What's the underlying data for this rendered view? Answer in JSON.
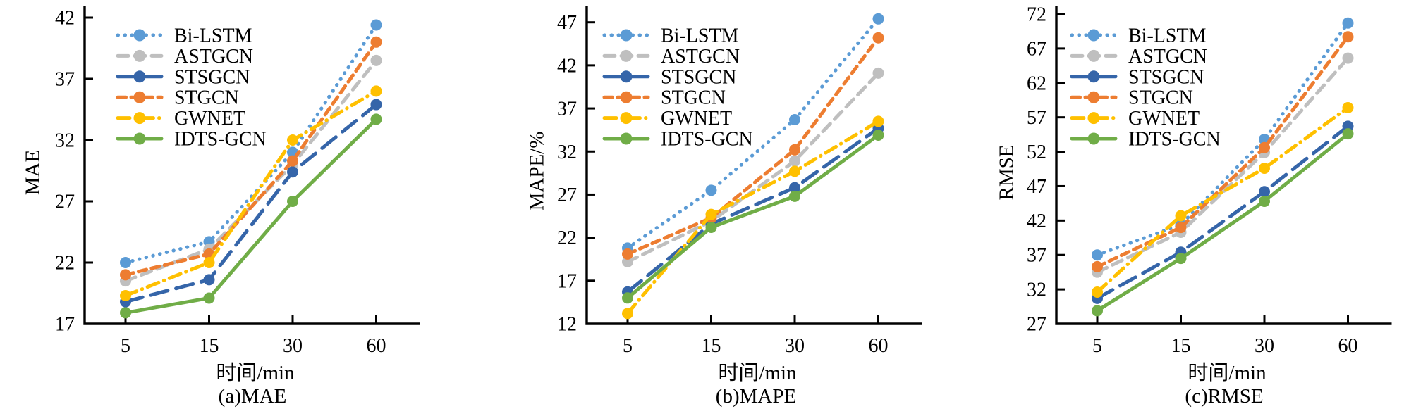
{
  "styles": {
    "background": "#FFFFFF",
    "axis_color": "#000000",
    "text_color": "#000000"
  },
  "legend": [
    "Bi-LSTM",
    "ASTGCN",
    "STSGCN",
    "STGCN",
    "GWNET",
    "IDTS-GCN"
  ],
  "chart_data": [
    {
      "type": "line",
      "title": "(a)MAE",
      "xlabel": "时间/min",
      "ylabel": "MAE",
      "x": [
        5,
        15,
        30,
        60
      ],
      "x_categories": [
        "5",
        "15",
        "30",
        "60"
      ],
      "yticks": [
        17,
        22,
        27,
        32,
        37,
        42
      ],
      "ylim": [
        17,
        42
      ],
      "grid": false,
      "legend_position": "top-left",
      "series": [
        {
          "name": "Bi-LSTM",
          "color": "#5B9BD5",
          "line_style": "dotted",
          "values": [
            22.0,
            23.7,
            31.0,
            41.4
          ]
        },
        {
          "name": "ASTGCN",
          "color": "#BFBFBF",
          "line_style": "dashed",
          "values": [
            20.5,
            23.1,
            30.0,
            38.5
          ]
        },
        {
          "name": "STSGCN",
          "color": "#3565A9",
          "line_style": "long-dash",
          "values": [
            18.8,
            20.6,
            29.4,
            34.9
          ]
        },
        {
          "name": "STGCN",
          "color": "#ED7D31",
          "line_style": "dashed-dense",
          "values": [
            21.0,
            22.7,
            30.3,
            40.0
          ]
        },
        {
          "name": "GWNET",
          "color": "#FFC000",
          "line_style": "dash-dot",
          "values": [
            19.3,
            22.0,
            32.0,
            36.0
          ]
        },
        {
          "name": "IDTS-GCN",
          "color": "#70AD47",
          "line_style": "solid",
          "values": [
            17.9,
            19.1,
            27.0,
            33.7
          ]
        }
      ]
    },
    {
      "type": "line",
      "title": "(b)MAPE",
      "xlabel": "时间/min",
      "ylabel": "MAPE/%",
      "x": [
        5,
        15,
        30,
        60
      ],
      "x_categories": [
        "5",
        "15",
        "30",
        "60"
      ],
      "yticks": [
        12,
        17,
        22,
        27,
        32,
        37,
        42,
        47
      ],
      "ylim": [
        12,
        47
      ],
      "grid": false,
      "legend_position": "top-left",
      "series": [
        {
          "name": "Bi-LSTM",
          "color": "#5B9BD5",
          "line_style": "dotted",
          "values": [
            20.8,
            27.5,
            35.7,
            47.4
          ]
        },
        {
          "name": "ASTGCN",
          "color": "#BFBFBF",
          "line_style": "dashed",
          "values": [
            19.2,
            23.9,
            30.9,
            41.1
          ]
        },
        {
          "name": "STSGCN",
          "color": "#3565A9",
          "line_style": "long-dash",
          "values": [
            15.7,
            23.6,
            27.8,
            34.7
          ]
        },
        {
          "name": "STGCN",
          "color": "#ED7D31",
          "line_style": "dashed-dense",
          "values": [
            20.1,
            24.3,
            32.2,
            45.2
          ]
        },
        {
          "name": "GWNET",
          "color": "#FFC000",
          "line_style": "dash-dot",
          "values": [
            13.2,
            24.7,
            29.7,
            35.5
          ]
        },
        {
          "name": "IDTS-GCN",
          "color": "#70AD47",
          "line_style": "solid",
          "values": [
            15.0,
            23.2,
            26.8,
            33.9
          ]
        }
      ]
    },
    {
      "type": "line",
      "title": "(c)RMSE",
      "xlabel": "时间/min",
      "ylabel": "RMSE",
      "x": [
        5,
        15,
        30,
        60
      ],
      "x_categories": [
        "5",
        "15",
        "30",
        "60"
      ],
      "yticks": [
        27,
        32,
        37,
        42,
        47,
        52,
        57,
        62,
        67,
        72
      ],
      "ylim": [
        27,
        72
      ],
      "grid": false,
      "legend_position": "top-left",
      "series": [
        {
          "name": "Bi-LSTM",
          "color": "#5B9BD5",
          "line_style": "dotted",
          "values": [
            37.0,
            41.4,
            53.8,
            70.7
          ]
        },
        {
          "name": "ASTGCN",
          "color": "#BFBFBF",
          "line_style": "dashed",
          "values": [
            34.5,
            40.3,
            51.9,
            65.6
          ]
        },
        {
          "name": "STSGCN",
          "color": "#3565A9",
          "line_style": "long-dash",
          "values": [
            30.7,
            37.4,
            46.2,
            55.7
          ]
        },
        {
          "name": "STGCN",
          "color": "#ED7D31",
          "line_style": "dashed-dense",
          "values": [
            35.3,
            41.0,
            52.6,
            68.7
          ]
        },
        {
          "name": "GWNET",
          "color": "#FFC000",
          "line_style": "dash-dot",
          "values": [
            31.6,
            42.7,
            49.6,
            58.4
          ]
        },
        {
          "name": "IDTS-GCN",
          "color": "#70AD47",
          "line_style": "solid",
          "values": [
            28.9,
            36.5,
            44.8,
            54.6
          ]
        }
      ]
    }
  ]
}
